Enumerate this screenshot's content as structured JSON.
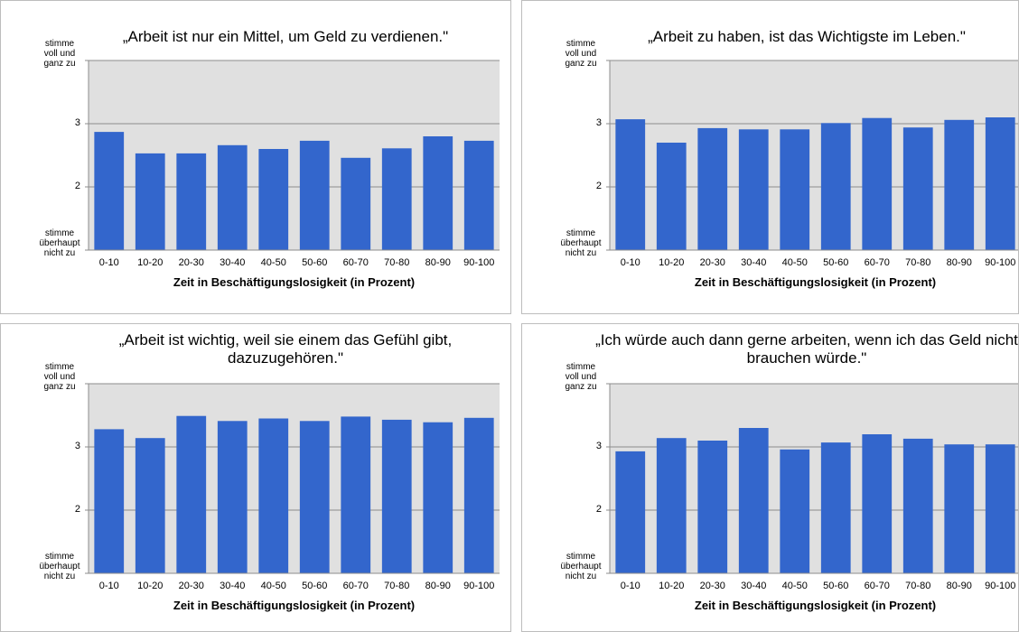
{
  "chart_data": [
    {
      "type": "bar",
      "title": "„Arbeit ist nur ein Mittel, um Geld zu verdienen.\"",
      "categories": [
        "0-10",
        "10-20",
        "20-30",
        "30-40",
        "40-50",
        "50-60",
        "60-70",
        "70-80",
        "80-90",
        "90-100"
      ],
      "values": [
        2.87,
        2.53,
        2.53,
        2.66,
        2.6,
        2.73,
        2.46,
        2.61,
        2.8,
        2.73
      ],
      "color": "#3366cc",
      "xlabel": "Zeit in Beschäftigungslosigkeit (in Prozent)",
      "ylim": [
        1,
        4
      ],
      "yticks": [
        {
          "value": 1,
          "label": "stimme überhaupt nicht zu"
        },
        2,
        3,
        {
          "value": 4,
          "label": "stimme voll und ganz zu"
        }
      ],
      "grid": true
    },
    {
      "type": "bar",
      "title": "„Arbeit zu haben, ist das Wichtigste im Leben.\"",
      "categories": [
        "0-10",
        "10-20",
        "20-30",
        "30-40",
        "40-50",
        "50-60",
        "60-70",
        "70-80",
        "80-90",
        "90-100"
      ],
      "values": [
        3.07,
        2.7,
        2.93,
        2.91,
        2.91,
        3.01,
        3.09,
        2.94,
        3.06,
        3.1
      ],
      "color": "#3366cc",
      "xlabel": "Zeit in Beschäftigungslosigkeit (in Prozent)",
      "ylim": [
        1,
        4
      ],
      "yticks": [
        {
          "value": 1,
          "label": "stimme überhaupt nicht zu"
        },
        2,
        3,
        {
          "value": 4,
          "label": "stimme voll und ganz zu"
        }
      ],
      "grid": true
    },
    {
      "type": "bar",
      "title": "„Arbeit ist wichtig, weil sie einem das Gefühl gibt, dazuzugehören.\"",
      "categories": [
        "0-10",
        "10-20",
        "20-30",
        "30-40",
        "40-50",
        "50-60",
        "60-70",
        "70-80",
        "80-90",
        "90-100"
      ],
      "values": [
        3.28,
        3.14,
        3.49,
        3.41,
        3.45,
        3.41,
        3.48,
        3.43,
        3.39,
        3.46
      ],
      "color": "#3366cc",
      "xlabel": "Zeit in Beschäftigungslosigkeit (in Prozent)",
      "ylim": [
        1,
        4
      ],
      "yticks": [
        {
          "value": 1,
          "label": "stimme überhaupt nicht zu"
        },
        2,
        3,
        {
          "value": 4,
          "label": "stimme voll und ganz zu"
        }
      ],
      "grid": true
    },
    {
      "type": "bar",
      "title": "„Ich würde auch dann gerne arbeiten, wenn ich das Geld nicht brauchen würde.\"",
      "categories": [
        "0-10",
        "10-20",
        "20-30",
        "30-40",
        "40-50",
        "50-60",
        "60-70",
        "70-80",
        "80-90",
        "90-100"
      ],
      "values": [
        2.93,
        3.14,
        3.1,
        3.3,
        2.96,
        3.07,
        3.2,
        3.13,
        3.04,
        3.04
      ],
      "color": "#3366cc",
      "xlabel": "Zeit in Beschäftigungslosigkeit (in Prozent)",
      "ylim": [
        1,
        4
      ],
      "yticks": [
        {
          "value": 1,
          "label": "stimme überhaupt nicht zu"
        },
        2,
        3,
        {
          "value": 4,
          "label": "stimme voll und ganz zu"
        }
      ],
      "grid": true
    }
  ]
}
